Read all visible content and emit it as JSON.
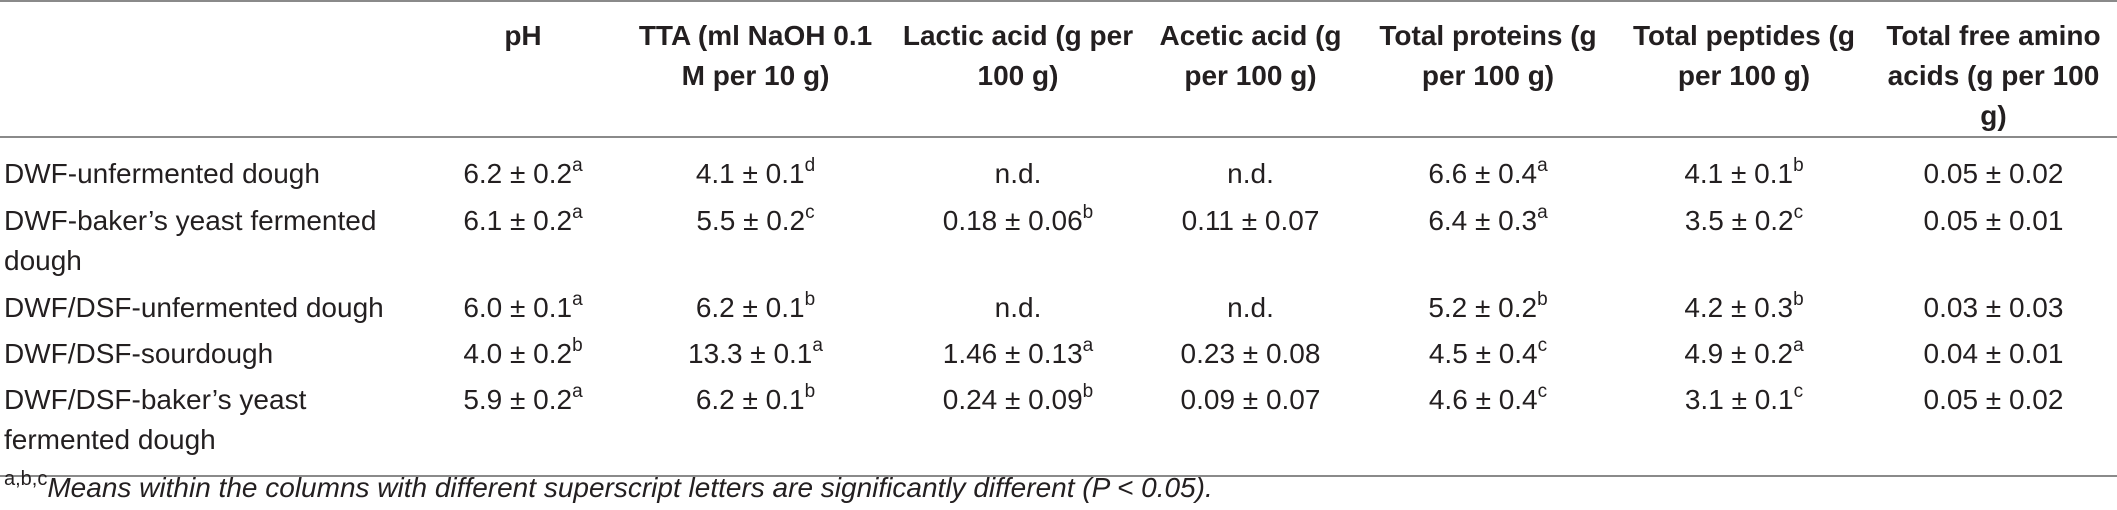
{
  "table": {
    "columns": [
      "",
      "pH",
      "TTA (ml NaOH 0.1 M per 10 g)",
      "Lactic acid (g per 100 g)",
      "Acetic acid (g per 100 g)",
      "Total proteins (g per 100 g)",
      "Total peptides (g per 100 g)",
      "Total free amino acids (g per 100 g)"
    ],
    "rows": [
      {
        "label": "DWF-unfermented dough",
        "cells": [
          {
            "v": "6.2 ± 0.2",
            "s": "a"
          },
          {
            "v": "4.1 ± 0.1",
            "s": "d"
          },
          {
            "v": "n.d.",
            "s": ""
          },
          {
            "v": "n.d.",
            "s": ""
          },
          {
            "v": "6.6 ± 0.4",
            "s": "a"
          },
          {
            "v": "4.1 ± 0.1",
            "s": "b"
          },
          {
            "v": "0.05 ± 0.02",
            "s": ""
          }
        ]
      },
      {
        "label": "DWF-baker’s yeast fermented dough",
        "cells": [
          {
            "v": "6.1 ± 0.2",
            "s": "a"
          },
          {
            "v": "5.5 ± 0.2",
            "s": "c"
          },
          {
            "v": "0.18 ± 0.06",
            "s": "b"
          },
          {
            "v": "0.11 ± 0.07",
            "s": ""
          },
          {
            "v": "6.4 ± 0.3",
            "s": "a"
          },
          {
            "v": "3.5 ± 0.2",
            "s": "c"
          },
          {
            "v": "0.05 ± 0.01",
            "s": ""
          }
        ]
      },
      {
        "label": "DWF/DSF-unfermented dough",
        "cells": [
          {
            "v": "6.0 ± 0.1",
            "s": "a"
          },
          {
            "v": "6.2 ± 0.1",
            "s": "b"
          },
          {
            "v": "n.d.",
            "s": ""
          },
          {
            "v": "n.d.",
            "s": ""
          },
          {
            "v": "5.2 ± 0.2",
            "s": "b"
          },
          {
            "v": "4.2 ± 0.3",
            "s": "b"
          },
          {
            "v": "0.03 ± 0.03",
            "s": ""
          }
        ]
      },
      {
        "label": "DWF/DSF-sourdough",
        "cells": [
          {
            "v": "4.0 ± 0.2",
            "s": "b"
          },
          {
            "v": "13.3 ± 0.1",
            "s": "a"
          },
          {
            "v": "1.46 ± 0.13",
            "s": "a"
          },
          {
            "v": "0.23 ± 0.08",
            "s": ""
          },
          {
            "v": "4.5 ± 0.4",
            "s": "c"
          },
          {
            "v": "4.9 ± 0.2",
            "s": "a"
          },
          {
            "v": "0.04 ± 0.01",
            "s": ""
          }
        ]
      },
      {
        "label": "DWF/DSF-baker’s yeast fermented dough",
        "cells": [
          {
            "v": "5.9 ± 0.2",
            "s": "a"
          },
          {
            "v": "6.2 ± 0.1",
            "s": "b"
          },
          {
            "v": "0.24 ± 0.09",
            "s": "b"
          },
          {
            "v": "0.09 ± 0.07",
            "s": ""
          },
          {
            "v": "4.6 ± 0.4",
            "s": "c"
          },
          {
            "v": "3.1 ± 0.1",
            "s": "c"
          },
          {
            "v": "0.05 ± 0.02",
            "s": ""
          }
        ]
      }
    ]
  },
  "footnote": {
    "marker": "a,b,c",
    "text": "Means within the columns with different superscript letters are significantly different (P < 0.05)."
  }
}
